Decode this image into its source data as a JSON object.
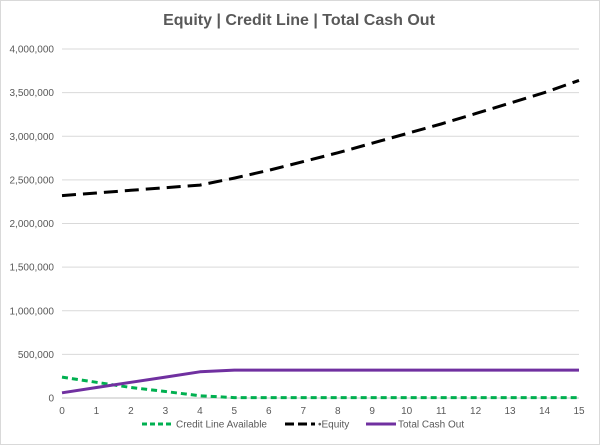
{
  "chart_data": {
    "type": "line",
    "title": "Equity | Credit Line | Total Cash Out",
    "xlabel": "",
    "ylabel": "",
    "x": [
      0,
      1,
      2,
      3,
      4,
      5,
      6,
      7,
      8,
      9,
      10,
      11,
      12,
      13,
      14,
      15
    ],
    "xlim": [
      0,
      15
    ],
    "ylim": [
      0,
      4000000
    ],
    "yticks": [
      0,
      500000,
      1000000,
      1500000,
      2000000,
      2500000,
      3000000,
      3500000,
      4000000
    ],
    "ytick_labels": [
      "0",
      "500,000",
      "1,000,000",
      "1,500,000",
      "2,000,000",
      "2,500,000",
      "3,000,000",
      "3,500,000",
      "4,000,000"
    ],
    "xtick_labels": [
      "0",
      "1",
      "2",
      "3",
      "4",
      "5",
      "6",
      "7",
      "8",
      "9",
      "10",
      "11",
      "12",
      "13",
      "14",
      "15"
    ],
    "grid": "horizontal",
    "legend_position": "bottom",
    "series": [
      {
        "name": "Credit Line Available",
        "color": "#00b050",
        "dash": "dashed",
        "values": [
          240000,
          180000,
          120000,
          75000,
          25000,
          5000,
          5000,
          5000,
          5000,
          5000,
          5000,
          5000,
          5000,
          5000,
          5000,
          5000
        ]
      },
      {
        "name": "•Equity",
        "color": "#000000",
        "dash": "long-dash",
        "values": [
          2320000,
          2350000,
          2380000,
          2410000,
          2440000,
          2520000,
          2610000,
          2710000,
          2810000,
          2920000,
          3030000,
          3140000,
          3260000,
          3380000,
          3500000,
          3640000
        ]
      },
      {
        "name": "Total Cash Out",
        "color": "#7030a0",
        "dash": "solid",
        "values": [
          60000,
          120000,
          180000,
          240000,
          300000,
          320000,
          320000,
          320000,
          320000,
          320000,
          320000,
          320000,
          320000,
          320000,
          320000,
          320000
        ]
      }
    ]
  }
}
